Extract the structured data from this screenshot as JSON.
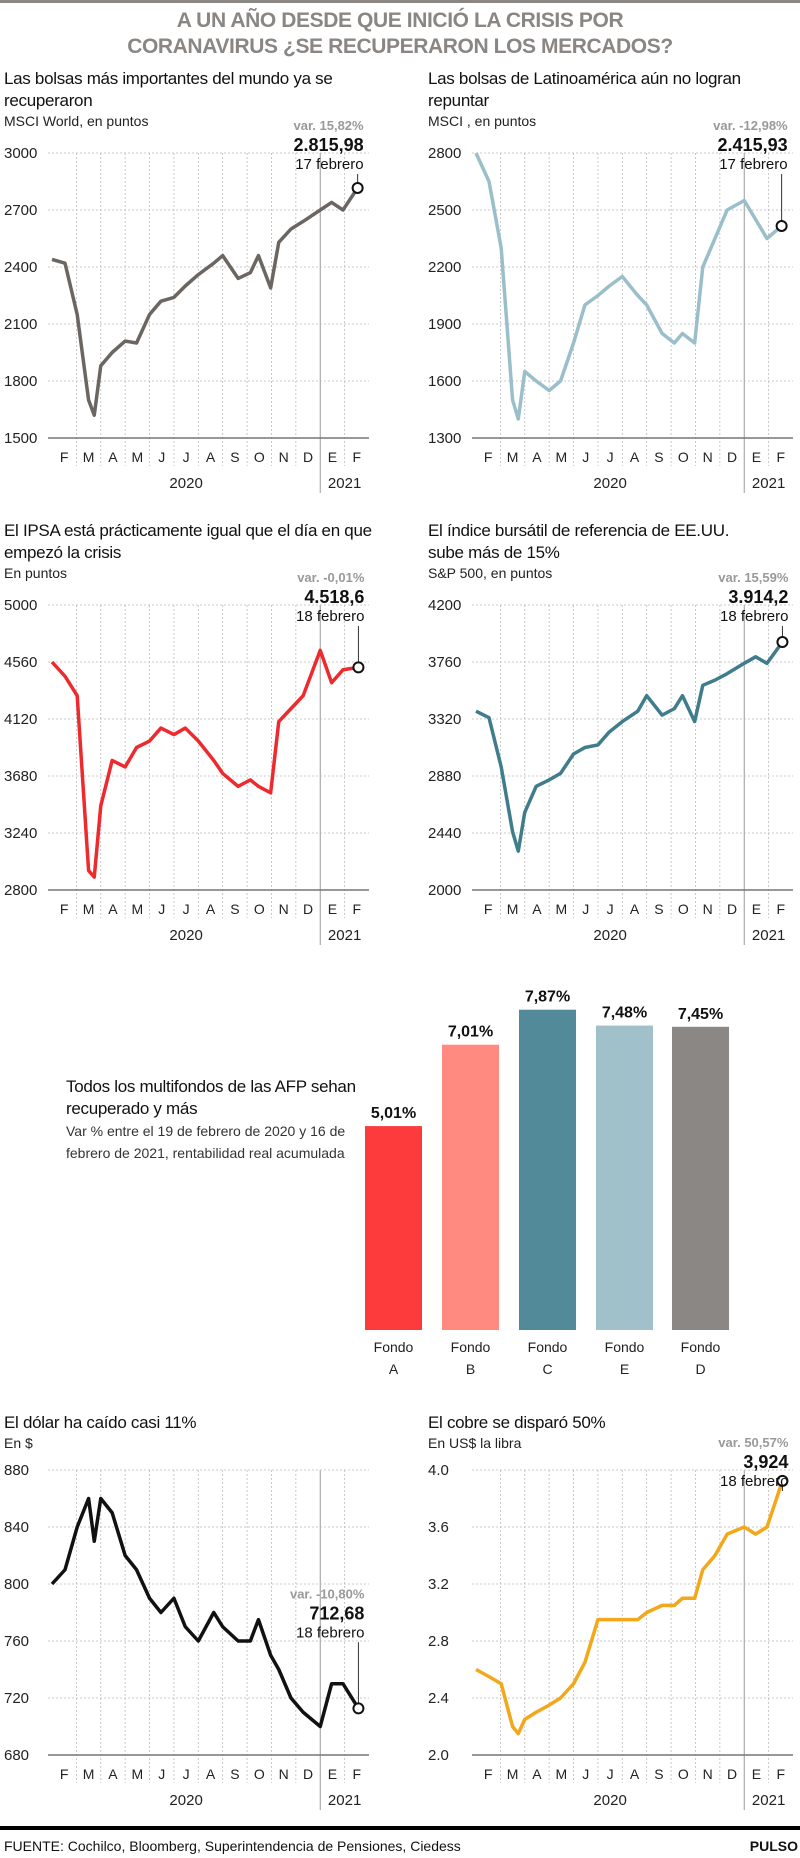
{
  "header": {
    "title_line1": "A UN AÑO DESDE QUE INICIÓ LA  CRISIS POR",
    "title_line2": "CORANAVIRUS ¿SE RECUPERARON LOS MERCADOS?"
  },
  "footer": {
    "source": "FUENTE: Cochilco, Bloomberg, Superintendencia de Pensiones, Ciedess",
    "brand": "PULSO"
  },
  "chart_data": [
    {
      "type": "line",
      "title": "Las bolsas más importantes del mundo ya se recuperaron",
      "subtitle": "MSCI World, en puntos",
      "color": "#6b6661",
      "ylim": [
        1500,
        3000
      ],
      "yticks": [
        "1500",
        "1800",
        "2100",
        "2400",
        "2700",
        "3000"
      ],
      "months": [
        "F",
        "M",
        "A",
        "M",
        "J",
        "J",
        "A",
        "S",
        "O",
        "N",
        "D",
        "E",
        "F"
      ],
      "years": [
        "2020",
        "2021"
      ],
      "dates": [
        "2020-02-01",
        "2020-02-17",
        "2020-03-02",
        "2020-03-16",
        "2020-03-23",
        "2020-04-01",
        "2020-04-15",
        "2020-05-01",
        "2020-05-15",
        "2020-06-01",
        "2020-06-15",
        "2020-07-01",
        "2020-07-15",
        "2020-08-01",
        "2020-08-20",
        "2020-09-01",
        "2020-09-20",
        "2020-10-05",
        "2020-10-15",
        "2020-10-30",
        "2020-11-10",
        "2020-11-25",
        "2020-12-10",
        "2021-01-01",
        "2021-01-15",
        "2021-01-29",
        "2021-02-17"
      ],
      "values": [
        2440,
        2420,
        2150,
        1700,
        1620,
        1880,
        1950,
        2010,
        2000,
        2150,
        2220,
        2240,
        2300,
        2360,
        2420,
        2460,
        2340,
        2370,
        2460,
        2290,
        2530,
        2600,
        2640,
        2700,
        2740,
        2700,
        2815.98
      ],
      "annotation": {
        "var": "var. 15,82%",
        "value": "2.815,98",
        "date": "17 febrero"
      }
    },
    {
      "type": "line",
      "title": "Las bolsas de Latinoamérica aún no logran repuntar",
      "subtitle": "MSCI , en puntos",
      "color": "#9bbfca",
      "ylim": [
        1300,
        2800
      ],
      "yticks": [
        "1300",
        "1600",
        "1900",
        "2200",
        "2500",
        "2800"
      ],
      "months": [
        "F",
        "M",
        "A",
        "M",
        "J",
        "J",
        "A",
        "S",
        "O",
        "N",
        "D",
        "E",
        "F"
      ],
      "years": [
        "2020",
        "2021"
      ],
      "dates": [
        "2020-02-01",
        "2020-02-17",
        "2020-03-02",
        "2020-03-16",
        "2020-03-23",
        "2020-04-01",
        "2020-04-15",
        "2020-05-01",
        "2020-05-15",
        "2020-06-01",
        "2020-06-15",
        "2020-07-01",
        "2020-07-15",
        "2020-08-01",
        "2020-08-20",
        "2020-09-01",
        "2020-09-20",
        "2020-10-05",
        "2020-10-15",
        "2020-10-30",
        "2020-11-10",
        "2020-11-25",
        "2020-12-10",
        "2021-01-01",
        "2021-01-15",
        "2021-01-29",
        "2021-02-17"
      ],
      "values": [
        2800,
        2650,
        2300,
        1500,
        1400,
        1650,
        1600,
        1550,
        1600,
        1800,
        2000,
        2050,
        2100,
        2150,
        2050,
        2000,
        1850,
        1800,
        1850,
        1800,
        2200,
        2350,
        2500,
        2550,
        2450,
        2350,
        2415.93
      ],
      "annotation": {
        "var": "var. -12,98%",
        "value": "2.415,93",
        "date": "17 febrero"
      }
    },
    {
      "type": "line",
      "title": "El IPSA está prácticamente igual que el día en que empezó la crisis",
      "subtitle": "En puntos",
      "color": "#ee2a2e",
      "ylim": [
        2800,
        5000
      ],
      "yticks": [
        "2800",
        "3240",
        "3680",
        "4120",
        "4560",
        "5000"
      ],
      "months": [
        "F",
        "M",
        "A",
        "M",
        "J",
        "J",
        "A",
        "S",
        "O",
        "N",
        "D",
        "E",
        "F"
      ],
      "years": [
        "2020",
        "2021"
      ],
      "dates": [
        "2020-02-01",
        "2020-02-17",
        "2020-03-02",
        "2020-03-16",
        "2020-03-23",
        "2020-04-01",
        "2020-04-15",
        "2020-05-01",
        "2020-05-15",
        "2020-06-01",
        "2020-06-15",
        "2020-07-01",
        "2020-07-15",
        "2020-08-01",
        "2020-08-20",
        "2020-09-01",
        "2020-09-20",
        "2020-10-05",
        "2020-10-15",
        "2020-10-30",
        "2020-11-10",
        "2020-11-25",
        "2020-12-10",
        "2021-01-01",
        "2021-01-15",
        "2021-01-29",
        "2021-02-18"
      ],
      "values": [
        4560,
        4450,
        4300,
        2950,
        2900,
        3450,
        3800,
        3750,
        3900,
        3950,
        4050,
        4000,
        4050,
        3950,
        3800,
        3700,
        3600,
        3650,
        3600,
        3550,
        4100,
        4200,
        4300,
        4650,
        4400,
        4500,
        4518.6
      ],
      "annotation": {
        "var": "var. -0,01%",
        "value": "4.518,6",
        "date": "18 febrero"
      }
    },
    {
      "type": "line",
      "title": "El índice bursátil de referencia de EE.UU. sube más de 15%",
      "subtitle": "S&P 500, en puntos",
      "color": "#3f7d8c",
      "ylim": [
        2000,
        4200
      ],
      "yticks": [
        "2000",
        "2440",
        "2880",
        "3320",
        "3760",
        "4200"
      ],
      "months": [
        "F",
        "M",
        "A",
        "M",
        "J",
        "J",
        "A",
        "S",
        "O",
        "N",
        "D",
        "E",
        "F"
      ],
      "years": [
        "2020",
        "2021"
      ],
      "dates": [
        "2020-02-01",
        "2020-02-17",
        "2020-03-02",
        "2020-03-16",
        "2020-03-23",
        "2020-04-01",
        "2020-04-15",
        "2020-05-01",
        "2020-05-15",
        "2020-06-01",
        "2020-06-15",
        "2020-07-01",
        "2020-07-15",
        "2020-08-01",
        "2020-08-20",
        "2020-09-01",
        "2020-09-20",
        "2020-10-05",
        "2020-10-15",
        "2020-10-30",
        "2020-11-10",
        "2020-11-25",
        "2020-12-10",
        "2021-01-01",
        "2021-01-15",
        "2021-01-29",
        "2021-02-18"
      ],
      "values": [
        3380,
        3330,
        2950,
        2450,
        2300,
        2600,
        2800,
        2850,
        2900,
        3050,
        3100,
        3120,
        3220,
        3300,
        3380,
        3500,
        3350,
        3400,
        3500,
        3300,
        3580,
        3620,
        3670,
        3750,
        3800,
        3750,
        3914.2
      ],
      "annotation": {
        "var": "var. 15,59%",
        "value": "3.914,2",
        "date": "18 febrero"
      }
    },
    {
      "type": "bar",
      "title": "Todos los multifondos de las AFP sehan recuperado y más",
      "subtitle": "Var % entre el 19 de febrero de 2020 y 16 de febrero de 2021, rentabilidad real acumulada",
      "categories": [
        [
          "Fondo",
          "A"
        ],
        [
          "Fondo",
          "B"
        ],
        [
          "Fondo",
          "C"
        ],
        [
          "Fondo",
          "E"
        ],
        [
          "Fondo",
          "D"
        ]
      ],
      "values": [
        5.01,
        7.01,
        7.87,
        7.48,
        7.45
      ],
      "labels": [
        "5,01%",
        "7,01%",
        "7,87%",
        "7,48%",
        "7,45%"
      ],
      "colors": [
        "#fd3a3c",
        "#fe8a80",
        "#528a99",
        "#a0c0ca",
        "#8b8784"
      ]
    },
    {
      "type": "line",
      "title": "El dólar ha caído casi 11%",
      "subtitle": "En $",
      "color": "#111111",
      "ylim": [
        680,
        880
      ],
      "yticks": [
        "680",
        "720",
        "760",
        "800",
        "840",
        "880"
      ],
      "months": [
        "F",
        "M",
        "A",
        "M",
        "J",
        "J",
        "A",
        "S",
        "O",
        "N",
        "D",
        "E",
        "F"
      ],
      "years": [
        "2020",
        "2021"
      ],
      "dates": [
        "2020-02-01",
        "2020-02-17",
        "2020-03-02",
        "2020-03-16",
        "2020-03-23",
        "2020-04-01",
        "2020-04-15",
        "2020-05-01",
        "2020-05-15",
        "2020-06-01",
        "2020-06-15",
        "2020-07-01",
        "2020-07-15",
        "2020-08-01",
        "2020-08-20",
        "2020-09-01",
        "2020-09-20",
        "2020-10-05",
        "2020-10-15",
        "2020-10-30",
        "2020-11-10",
        "2020-11-25",
        "2020-12-10",
        "2021-01-01",
        "2021-01-15",
        "2021-01-29",
        "2021-02-18"
      ],
      "values": [
        800,
        810,
        840,
        860,
        830,
        860,
        850,
        820,
        810,
        790,
        780,
        790,
        770,
        760,
        780,
        770,
        760,
        760,
        775,
        750,
        740,
        720,
        710,
        700,
        730,
        730,
        712.68
      ],
      "annotation": {
        "var": "var. -10,80%",
        "value": "712,68",
        "date": "18 febrero"
      }
    },
    {
      "type": "line",
      "title": "El cobre se disparó 50%",
      "subtitle": "En US$ la libra",
      "color": "#f3a81c",
      "ylim": [
        2.0,
        4.0
      ],
      "yticks": [
        "2.0",
        "2.4",
        "2.8",
        "3.2",
        "3.6",
        "4.0"
      ],
      "months": [
        "F",
        "M",
        "A",
        "M",
        "J",
        "J",
        "A",
        "S",
        "O",
        "N",
        "D",
        "E",
        "F"
      ],
      "years": [
        "2020",
        "2021"
      ],
      "dates": [
        "2020-02-01",
        "2020-02-17",
        "2020-03-02",
        "2020-03-16",
        "2020-03-23",
        "2020-04-01",
        "2020-04-15",
        "2020-05-01",
        "2020-05-15",
        "2020-06-01",
        "2020-06-15",
        "2020-07-01",
        "2020-07-15",
        "2020-08-01",
        "2020-08-20",
        "2020-09-01",
        "2020-09-20",
        "2020-10-05",
        "2020-10-15",
        "2020-10-30",
        "2020-11-10",
        "2020-11-25",
        "2020-12-10",
        "2021-01-01",
        "2021-01-15",
        "2021-01-29",
        "2021-02-18"
      ],
      "values": [
        2.6,
        2.55,
        2.5,
        2.2,
        2.15,
        2.25,
        2.3,
        2.35,
        2.4,
        2.5,
        2.65,
        2.95,
        2.95,
        2.95,
        2.95,
        3.0,
        3.05,
        3.05,
        3.1,
        3.1,
        3.3,
        3.4,
        3.55,
        3.6,
        3.55,
        3.6,
        3.924
      ],
      "annotation": {
        "var": "var. 50,57%",
        "value": "3,924",
        "date": "18 febrero"
      }
    }
  ]
}
